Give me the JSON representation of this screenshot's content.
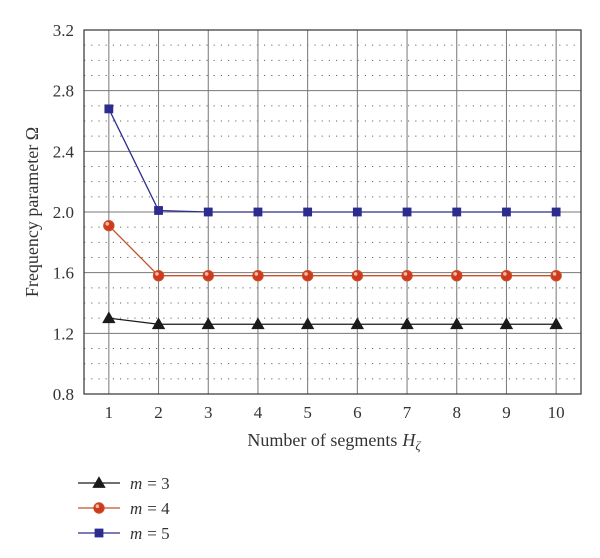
{
  "chart_data": {
    "type": "line",
    "xlabel": "Number of segments",
    "xlabel_symbol": "H",
    "xlabel_subscript": "ζ",
    "ylabel": "Frequency parameter Ω",
    "x": [
      1,
      2,
      3,
      4,
      5,
      6,
      7,
      8,
      9,
      10
    ],
    "xlim": [
      0.5,
      10.5
    ],
    "ylim": [
      0.8,
      3.2
    ],
    "xticks": [
      "1",
      "2",
      "3",
      "4",
      "5",
      "6",
      "7",
      "8",
      "9",
      "10"
    ],
    "yticks": [
      "0.8",
      "1.2",
      "1.6",
      "2.0",
      "2.4",
      "2.8",
      "3.2"
    ],
    "ytick_values": [
      0.8,
      1.2,
      1.6,
      2.0,
      2.4,
      2.8,
      3.2
    ],
    "grid": "major solid, minor dotted",
    "legend_position": "bottom-left, below plot",
    "series": [
      {
        "name": "m = 3",
        "var": "m",
        "num": "= 3",
        "marker": "triangle",
        "color": "#1a1a1a",
        "marker_fill": "#1a1a1a",
        "values": [
          1.3,
          1.26,
          1.26,
          1.26,
          1.26,
          1.26,
          1.26,
          1.26,
          1.26,
          1.26
        ]
      },
      {
        "name": "m = 4",
        "var": "m",
        "num": "= 4",
        "marker": "circle",
        "color": "#c8502a",
        "marker_fill": "#d03a1c",
        "values": [
          1.91,
          1.58,
          1.58,
          1.58,
          1.58,
          1.58,
          1.58,
          1.58,
          1.58,
          1.58
        ]
      },
      {
        "name": "m = 5",
        "var": "m",
        "num": "= 5",
        "marker": "square",
        "color": "#2c2c8e",
        "marker_fill": "#2c2c8e",
        "values": [
          2.68,
          2.01,
          2.0,
          2.0,
          2.0,
          2.0,
          2.0,
          2.0,
          2.0,
          2.0
        ]
      }
    ]
  }
}
